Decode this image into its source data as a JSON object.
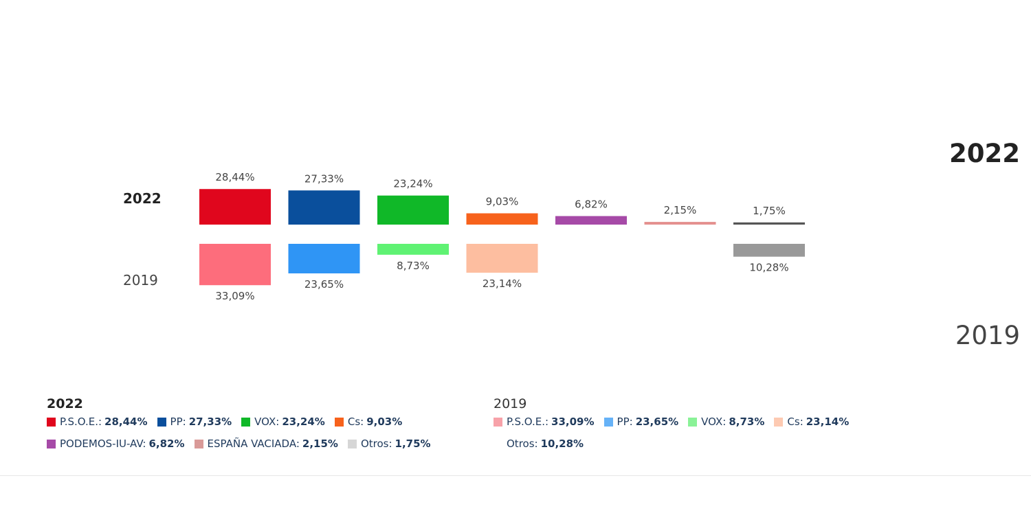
{
  "years": {
    "current": "2022",
    "previous": "2019"
  },
  "chart_data": {
    "type": "bar",
    "categories": [
      "P.S.O.E.",
      "PP",
      "VOX",
      "Cs",
      "PODEMOS-IU-AV",
      "ESPAÑA VACIADA",
      "Otros"
    ],
    "series": [
      {
        "name": "2022",
        "values": [
          28.44,
          27.33,
          23.24,
          9.03,
          6.82,
          2.15,
          1.75
        ],
        "labels": [
          "28,44%",
          "27,33%",
          "23,24%",
          "9,03%",
          "6,82%",
          "2,15%",
          "1,75%"
        ],
        "colors": [
          "#e0061d",
          "#0a4f9c",
          "#10b828",
          "#f7621c",
          "#a64aa7",
          "#e4908e",
          "#555555"
        ]
      },
      {
        "name": "2019",
        "values": [
          33.09,
          23.65,
          8.73,
          23.14,
          null,
          null,
          10.28
        ],
        "labels": [
          "33,09%",
          "23,65%",
          "8,73%",
          "23,14%",
          "",
          "",
          "10,28%"
        ],
        "colors": [
          "#fd6d7c",
          "#2f95f5",
          "#5ff273",
          "#fdbea0",
          "",
          "",
          "#999999"
        ]
      }
    ],
    "ylim": [
      0,
      34
    ]
  },
  "legend_2022": {
    "title": "2022",
    "items": [
      {
        "name": "P.S.O.E.:",
        "value": "28,44%",
        "color": "#e0061d"
      },
      {
        "name": "PP:",
        "value": "27,33%",
        "color": "#0a4f9c"
      },
      {
        "name": "VOX:",
        "value": "23,24%",
        "color": "#10b828"
      },
      {
        "name": "Cs:",
        "value": "9,03%",
        "color": "#f7621c"
      },
      {
        "name": "PODEMOS-IU-AV:",
        "value": "6,82%",
        "color": "#a64aa7"
      },
      {
        "name": "ESPAÑA VACIADA:",
        "value": "2,15%",
        "color": "#d99a98"
      },
      {
        "name": "Otros:",
        "value": "1,75%",
        "color": "#d6d6d6"
      }
    ]
  },
  "legend_2019": {
    "title": "2019",
    "items": [
      {
        "name": "P.S.O.E.:",
        "value": "33,09%",
        "color": "#f7a2a9"
      },
      {
        "name": "PP:",
        "value": "23,65%",
        "color": "#66b2f7"
      },
      {
        "name": "VOX:",
        "value": "8,73%",
        "color": "#8af297"
      },
      {
        "name": "Cs:",
        "value": "23,14%",
        "color": "#fdcab2"
      },
      {
        "name": "Otros:",
        "value": "10,28%",
        "color": ""
      }
    ]
  }
}
